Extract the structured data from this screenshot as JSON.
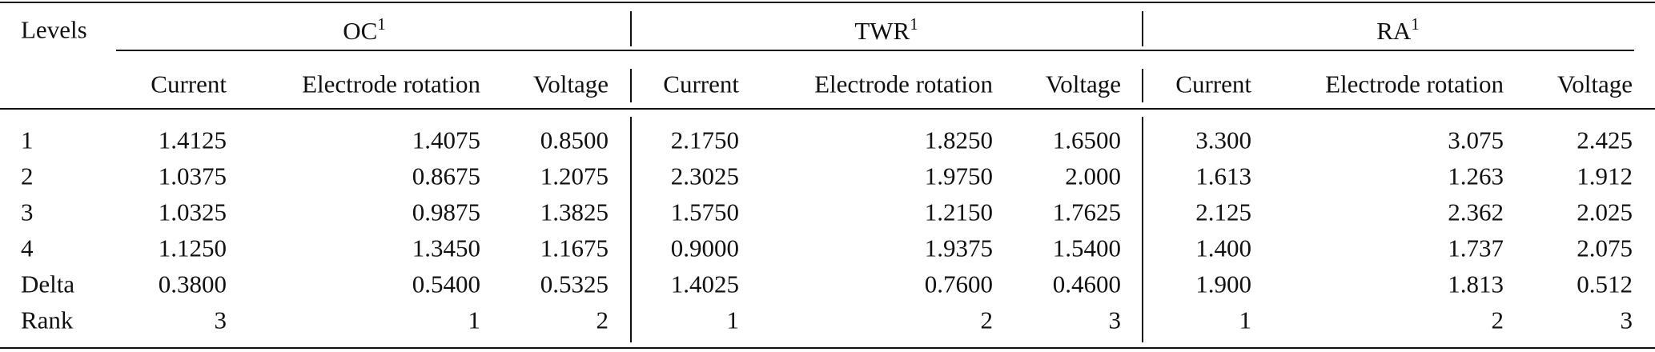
{
  "header": {
    "first": "Levels",
    "groups": [
      {
        "name": "OC",
        "note": "1",
        "columns": [
          "Current",
          "Electrode rotation",
          "Voltage"
        ]
      },
      {
        "name": "TWR",
        "note": "1",
        "columns": [
          "Current",
          "Electrode rotation",
          "Voltage"
        ]
      },
      {
        "name": "RA",
        "note": "1",
        "columns": [
          "Current",
          "Electrode rotation",
          "Voltage"
        ]
      }
    ]
  },
  "rows": [
    {
      "label": "1",
      "cells": [
        "1.4125",
        "1.4075",
        "0.8500",
        "2.1750",
        "1.8250",
        "1.6500",
        "3.300",
        "3.075",
        "2.425"
      ]
    },
    {
      "label": "2",
      "cells": [
        "1.0375",
        "0.8675",
        "1.2075",
        "2.3025",
        "1.9750",
        "2.000",
        "1.613",
        "1.263",
        "1.912"
      ]
    },
    {
      "label": "3",
      "cells": [
        "1.0325",
        "0.9875",
        "1.3825",
        "1.5750",
        "1.2150",
        "1.7625",
        "2.125",
        "2.362",
        "2.025"
      ]
    },
    {
      "label": "4",
      "cells": [
        "1.1250",
        "1.3450",
        "1.1675",
        "0.9000",
        "1.9375",
        "1.5400",
        "1.400",
        "1.737",
        "2.075"
      ]
    },
    {
      "label": "Delta",
      "cells": [
        "0.3800",
        "0.5400",
        "0.5325",
        "1.4025",
        "0.7600",
        "0.4600",
        "1.900",
        "1.813",
        "0.512"
      ]
    },
    {
      "label": "Rank",
      "cells": [
        "3",
        "1",
        "2",
        "1",
        "2",
        "3",
        "1",
        "2",
        "3"
      ]
    }
  ]
}
